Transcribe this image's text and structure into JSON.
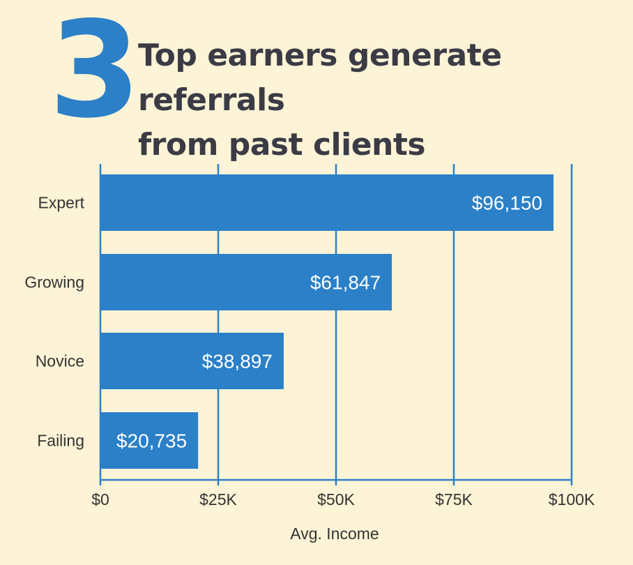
{
  "header": {
    "number": "3",
    "title_line1": "Top earners generate referrals",
    "title_line2": "from past clients"
  },
  "colors": {
    "background": "#fdf3d6",
    "bar": "#2b80c8",
    "gridline": "#2b80c8",
    "number": "#2b80c8",
    "title": "#3a3b45"
  },
  "chart_data": {
    "type": "bar",
    "orientation": "horizontal",
    "categories": [
      "Expert",
      "Growing",
      "Novice",
      "Failing"
    ],
    "values": [
      96150,
      61847,
      38897,
      20735
    ],
    "data_labels": [
      "$96,150",
      "$61,847",
      "$38,897",
      "$20,735"
    ],
    "xlabel": "Avg. Income",
    "ylabel": "",
    "xlim": [
      0,
      100000
    ],
    "ticks": [
      0,
      25000,
      50000,
      75000,
      100000
    ],
    "tick_labels": [
      "$0",
      "$25K",
      "$50K",
      "$75K",
      "$100K"
    ],
    "grid": true,
    "legend": "none"
  }
}
